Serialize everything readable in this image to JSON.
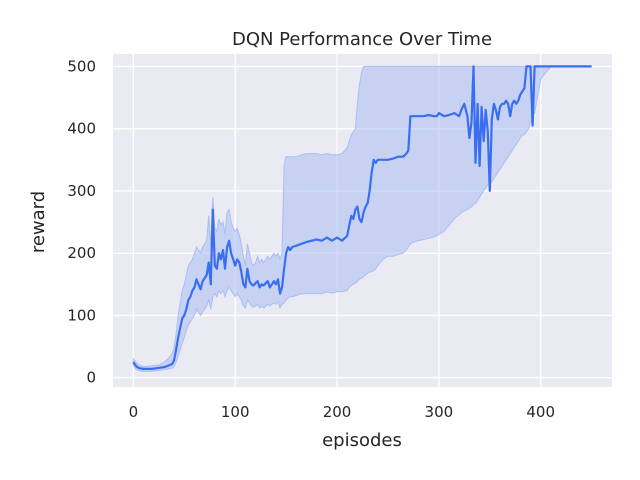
{
  "chart_data": {
    "type": "line",
    "title": "DQN Performance Over Time",
    "xlabel": "episodes",
    "ylabel": "reward",
    "xlim": [
      -20,
      470
    ],
    "ylim": [
      -15,
      520
    ],
    "xticks": [
      0,
      100,
      200,
      300,
      400
    ],
    "yticks": [
      0,
      100,
      200,
      300,
      400,
      500
    ],
    "grid": true,
    "colors": {
      "line": "#3a6ef0",
      "band": "#aabdf4",
      "plot_bg": "#eaeaf2",
      "grid": "#ffffff"
    },
    "series": [
      {
        "x": [
          0,
          3,
          6,
          10,
          14,
          18,
          22,
          26,
          30,
          34,
          38,
          40,
          42,
          44,
          46,
          48,
          50,
          52,
          54,
          56,
          58,
          60,
          62,
          64,
          66,
          68,
          70,
          72,
          74,
          76,
          78,
          80,
          82,
          84,
          86,
          88,
          90,
          92,
          94,
          96,
          98,
          100,
          102,
          104,
          106,
          108,
          110,
          112,
          114,
          116,
          118,
          120,
          122,
          124,
          126,
          128,
          130,
          132,
          134,
          136,
          138,
          140,
          142,
          144,
          146,
          148,
          150,
          152,
          154,
          156,
          160,
          165,
          170,
          175,
          180,
          185,
          190,
          195,
          200,
          205,
          210,
          212,
          214,
          216,
          218,
          220,
          222,
          224,
          226,
          228,
          230,
          232,
          234,
          236,
          238,
          240,
          245,
          250,
          255,
          260,
          265,
          268,
          270,
          272,
          275,
          280,
          285,
          290,
          295,
          298,
          300,
          305,
          310,
          315,
          320,
          322,
          325,
          328,
          330,
          332,
          334,
          336,
          338,
          340,
          342,
          344,
          346,
          348,
          350,
          352,
          354,
          356,
          358,
          360,
          362,
          364,
          366,
          368,
          370,
          372,
          374,
          376,
          378,
          380,
          382,
          384,
          386,
          388,
          390,
          392,
          394,
          400,
          410,
          420,
          430,
          440,
          450
        ],
        "mean": [
          25,
          18,
          15,
          14,
          14,
          14,
          15,
          16,
          17,
          19,
          22,
          28,
          45,
          65,
          80,
          95,
          100,
          110,
          125,
          130,
          140,
          145,
          158,
          150,
          142,
          155,
          160,
          165,
          185,
          150,
          270,
          180,
          175,
          200,
          190,
          205,
          175,
          210,
          220,
          200,
          190,
          180,
          190,
          185,
          170,
          150,
          145,
          175,
          155,
          150,
          148,
          152,
          155,
          145,
          150,
          148,
          152,
          155,
          145,
          150,
          155,
          150,
          158,
          135,
          145,
          175,
          200,
          210,
          205,
          210,
          212,
          215,
          218,
          220,
          222,
          220,
          225,
          220,
          225,
          220,
          228,
          245,
          260,
          255,
          270,
          275,
          255,
          250,
          265,
          275,
          280,
          300,
          330,
          350,
          345,
          350,
          350,
          350,
          352,
          355,
          355,
          360,
          365,
          420,
          420,
          420,
          420,
          422,
          420,
          420,
          425,
          420,
          422,
          425,
          420,
          430,
          440,
          420,
          385,
          410,
          500,
          345,
          440,
          340,
          435,
          380,
          430,
          395,
          300,
          415,
          440,
          430,
          415,
          435,
          440,
          440,
          445,
          440,
          420,
          440,
          445,
          440,
          445,
          455,
          460,
          465,
          500,
          500,
          500,
          405,
          500,
          500,
          500,
          500,
          500,
          500,
          500
        ],
        "upper": [
          30,
          24,
          20,
          18,
          18,
          19,
          20,
          21,
          25,
          30,
          38,
          48,
          70,
          100,
          120,
          140,
          150,
          165,
          180,
          185,
          190,
          200,
          210,
          205,
          200,
          210,
          215,
          220,
          260,
          210,
          290,
          240,
          235,
          255,
          245,
          250,
          230,
          265,
          270,
          250,
          240,
          235,
          240,
          230,
          215,
          195,
          180,
          215,
          200,
          185,
          180,
          185,
          195,
          185,
          190,
          185,
          190,
          195,
          190,
          195,
          200,
          195,
          200,
          190,
          200,
          340,
          355,
          355,
          355,
          355,
          355,
          358,
          360,
          360,
          360,
          358,
          360,
          358,
          358,
          360,
          370,
          380,
          390,
          395,
          400,
          440,
          470,
          490,
          500,
          500,
          500,
          500,
          500,
          500,
          500,
          500,
          500,
          500,
          500,
          500,
          500,
          500,
          500,
          500,
          500,
          500,
          500,
          500,
          500,
          500,
          500,
          500,
          500,
          500,
          500,
          500,
          500,
          500,
          500,
          500,
          500,
          500,
          500,
          500,
          500,
          500,
          500,
          500,
          500,
          500,
          500,
          500,
          500,
          500,
          500,
          500,
          500,
          500,
          500,
          500,
          500,
          500,
          500,
          500,
          500,
          500,
          500,
          500,
          500,
          500,
          500,
          500,
          500,
          500,
          500,
          500,
          500
        ],
        "lower": [
          20,
          13,
          11,
          10,
          10,
          10,
          11,
          12,
          13,
          14,
          15,
          18,
          25,
          35,
          45,
          55,
          65,
          75,
          85,
          90,
          95,
          100,
          110,
          105,
          100,
          105,
          110,
          115,
          125,
          110,
          130,
          135,
          130,
          140,
          135,
          140,
          130,
          140,
          145,
          140,
          135,
          130,
          135,
          130,
          125,
          115,
          112,
          125,
          120,
          115,
          113,
          115,
          118,
          112,
          115,
          112,
          115,
          118,
          115,
          118,
          120,
          118,
          122,
          112,
          118,
          120,
          125,
          128,
          130,
          130,
          132,
          135,
          135,
          135,
          135,
          135,
          138,
          136,
          138,
          138,
          140,
          145,
          148,
          150,
          152,
          155,
          158,
          160,
          162,
          165,
          168,
          170,
          170,
          172,
          175,
          180,
          190,
          195,
          195,
          198,
          200,
          205,
          210,
          215,
          218,
          220,
          222,
          224,
          226,
          228,
          230,
          235,
          245,
          255,
          262,
          265,
          268,
          270,
          272,
          275,
          278,
          280,
          285,
          290,
          295,
          300,
          305,
          310,
          312,
          315,
          320,
          325,
          330,
          335,
          340,
          345,
          350,
          355,
          360,
          365,
          370,
          375,
          380,
          385,
          390,
          390,
          395,
          400,
          410,
          420,
          425,
          480,
          500,
          500,
          500,
          500,
          500
        ]
      }
    ]
  }
}
